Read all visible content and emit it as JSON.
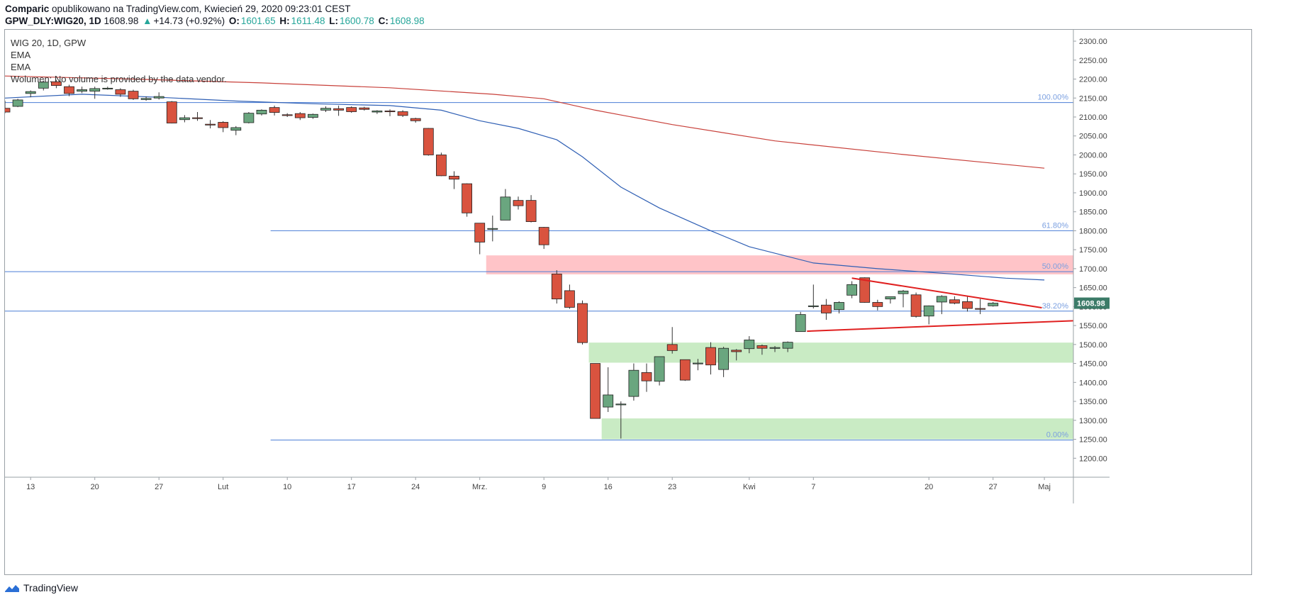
{
  "header": {
    "author": "Comparic",
    "published": " opublikowano na TradingView.com, Kwiecień 29, 2020 09:23:01 CEST",
    "symbol": "GPW_DLY:WIG20, 1D",
    "last": "1608.98",
    "arrow": "▲",
    "change": "+14.73 (+0.92%)",
    "o_label": "O:",
    "o": "1601.65",
    "h_label": "H:",
    "h": "1611.48",
    "l_label": "L:",
    "l": "1600.78",
    "c_label": "C:",
    "c": "1608.98"
  },
  "legend": {
    "title": "WIG 20, 1D, GPW",
    "ema1": "EMA",
    "ema2": "EMA",
    "volume": "Wolumen: No volume is provided by the data vendor."
  },
  "footer": {
    "brand": "TradingView"
  },
  "colors": {
    "up": "#26a69a",
    "body_up": "#6aa67f",
    "body_down": "#d9533f",
    "ema_fast": "#2f5fb4",
    "ema_slow": "#c8403a",
    "fib": "#4a7ed6",
    "zone_red": "#ffc4c8",
    "zone_green": "#c9ebc4",
    "trend": "#e02020"
  },
  "chart_data": {
    "type": "candlestick",
    "ylim": [
      1150,
      2330
    ],
    "y_ticks": [
      1200,
      1250,
      1300,
      1350,
      1400,
      1450,
      1500,
      1550,
      1600,
      1650,
      1700,
      1750,
      1800,
      1850,
      1900,
      1950,
      2000,
      2050,
      2100,
      2150,
      2200,
      2250,
      2300
    ],
    "y_tick_labels": [
      "1200.00",
      "1250.00",
      "1300.00",
      "1350.00",
      "1400.00",
      "1450.00",
      "1500.00",
      "1550.00",
      "1600.00",
      "1650.00",
      "1700.00",
      "1750.00",
      "1800.00",
      "1850.00",
      "1900.00",
      "1950.00",
      "2000.00",
      "2050.00",
      "2100.00",
      "2150.00",
      "2200.00",
      "2250.00",
      "2300.00"
    ],
    "x_tick_labels": [
      {
        "label": "13",
        "i": 2
      },
      {
        "label": "20",
        "i": 7
      },
      {
        "label": "27",
        "i": 12
      },
      {
        "label": "Lut",
        "i": 17
      },
      {
        "label": "10",
        "i": 22
      },
      {
        "label": "17",
        "i": 27
      },
      {
        "label": "24",
        "i": 32
      },
      {
        "label": "Mrz.",
        "i": 37
      },
      {
        "label": "9",
        "i": 42
      },
      {
        "label": "16",
        "i": 47
      },
      {
        "label": "23",
        "i": 52
      },
      {
        "label": "Kwi",
        "i": 58
      },
      {
        "label": "7",
        "i": 63
      },
      {
        "label": "20",
        "i": 72
      },
      {
        "label": "27",
        "i": 77
      },
      {
        "label": "Maj",
        "i": 81
      }
    ],
    "candles": [
      {
        "o": 2123,
        "h": 2143,
        "l": 2110,
        "c": 2113
      },
      {
        "o": 2128,
        "h": 2148,
        "l": 2126,
        "c": 2145
      },
      {
        "o": 2162,
        "h": 2170,
        "l": 2152,
        "c": 2167
      },
      {
        "o": 2176,
        "h": 2196,
        "l": 2170,
        "c": 2192
      },
      {
        "o": 2193,
        "h": 2198,
        "l": 2176,
        "c": 2183
      },
      {
        "o": 2180,
        "h": 2185,
        "l": 2155,
        "c": 2162
      },
      {
        "o": 2168,
        "h": 2180,
        "l": 2163,
        "c": 2172
      },
      {
        "o": 2168,
        "h": 2180,
        "l": 2148,
        "c": 2175
      },
      {
        "o": 2176,
        "h": 2180,
        "l": 2172,
        "c": 2176
      },
      {
        "o": 2172,
        "h": 2176,
        "l": 2153,
        "c": 2160
      },
      {
        "o": 2168,
        "h": 2172,
        "l": 2145,
        "c": 2148
      },
      {
        "o": 2146,
        "h": 2154,
        "l": 2143,
        "c": 2149
      },
      {
        "o": 2150,
        "h": 2165,
        "l": 2146,
        "c": 2154
      },
      {
        "o": 2140,
        "h": 2142,
        "l": 2083,
        "c": 2084
      },
      {
        "o": 2093,
        "h": 2105,
        "l": 2086,
        "c": 2098
      },
      {
        "o": 2098,
        "h": 2113,
        "l": 2090,
        "c": 2096
      },
      {
        "o": 2081,
        "h": 2092,
        "l": 2070,
        "c": 2080
      },
      {
        "o": 2086,
        "h": 2089,
        "l": 2060,
        "c": 2072
      },
      {
        "o": 2065,
        "h": 2076,
        "l": 2052,
        "c": 2072
      },
      {
        "o": 2085,
        "h": 2113,
        "l": 2083,
        "c": 2110
      },
      {
        "o": 2108,
        "h": 2120,
        "l": 2104,
        "c": 2118
      },
      {
        "o": 2125,
        "h": 2130,
        "l": 2104,
        "c": 2112
      },
      {
        "o": 2106,
        "h": 2110,
        "l": 2100,
        "c": 2105
      },
      {
        "o": 2109,
        "h": 2113,
        "l": 2092,
        "c": 2098
      },
      {
        "o": 2099,
        "h": 2109,
        "l": 2095,
        "c": 2107
      },
      {
        "o": 2118,
        "h": 2128,
        "l": 2113,
        "c": 2123
      },
      {
        "o": 2122,
        "h": 2130,
        "l": 2103,
        "c": 2118
      },
      {
        "o": 2125,
        "h": 2128,
        "l": 2111,
        "c": 2114
      },
      {
        "o": 2124,
        "h": 2127,
        "l": 2117,
        "c": 2120
      },
      {
        "o": 2113,
        "h": 2118,
        "l": 2108,
        "c": 2116
      },
      {
        "o": 2116,
        "h": 2120,
        "l": 2102,
        "c": 2114
      },
      {
        "o": 2114,
        "h": 2118,
        "l": 2100,
        "c": 2104
      },
      {
        "o": 2096,
        "h": 2098,
        "l": 2085,
        "c": 2090
      },
      {
        "o": 2070,
        "h": 2071,
        "l": 1998,
        "c": 2000
      },
      {
        "o": 2000,
        "h": 2006,
        "l": 1944,
        "c": 1945
      },
      {
        "o": 1944,
        "h": 1957,
        "l": 1910,
        "c": 1936
      },
      {
        "o": 1924,
        "h": 1925,
        "l": 1837,
        "c": 1847
      },
      {
        "o": 1820,
        "h": 1820,
        "l": 1738,
        "c": 1770
      },
      {
        "o": 1806,
        "h": 1840,
        "l": 1772,
        "c": 1806
      },
      {
        "o": 1828,
        "h": 1910,
        "l": 1828,
        "c": 1889
      },
      {
        "o": 1880,
        "h": 1890,
        "l": 1856,
        "c": 1866
      },
      {
        "o": 1880,
        "h": 1894,
        "l": 1822,
        "c": 1824
      },
      {
        "o": 1809,
        "h": 1810,
        "l": 1752,
        "c": 1763
      },
      {
        "o": 1686,
        "h": 1696,
        "l": 1608,
        "c": 1620
      },
      {
        "o": 1642,
        "h": 1658,
        "l": 1594,
        "c": 1598
      },
      {
        "o": 1608,
        "h": 1616,
        "l": 1500,
        "c": 1505
      },
      {
        "o": 1450,
        "h": 1450,
        "l": 1305,
        "c": 1305
      },
      {
        "o": 1335,
        "h": 1440,
        "l": 1322,
        "c": 1367
      },
      {
        "o": 1343,
        "h": 1350,
        "l": 1252,
        "c": 1343
      },
      {
        "o": 1363,
        "h": 1450,
        "l": 1352,
        "c": 1432
      },
      {
        "o": 1426,
        "h": 1450,
        "l": 1375,
        "c": 1404
      },
      {
        "o": 1403,
        "h": 1468,
        "l": 1392,
        "c": 1468
      },
      {
        "o": 1500,
        "h": 1546,
        "l": 1476,
        "c": 1484
      },
      {
        "o": 1460,
        "h": 1460,
        "l": 1404,
        "c": 1406
      },
      {
        "o": 1451,
        "h": 1462,
        "l": 1432,
        "c": 1451
      },
      {
        "o": 1492,
        "h": 1506,
        "l": 1421,
        "c": 1446
      },
      {
        "o": 1434,
        "h": 1494,
        "l": 1414,
        "c": 1490
      },
      {
        "o": 1485,
        "h": 1488,
        "l": 1458,
        "c": 1481
      },
      {
        "o": 1489,
        "h": 1522,
        "l": 1477,
        "c": 1512
      },
      {
        "o": 1497,
        "h": 1500,
        "l": 1473,
        "c": 1490
      },
      {
        "o": 1490,
        "h": 1496,
        "l": 1480,
        "c": 1492
      },
      {
        "o": 1490,
        "h": 1508,
        "l": 1480,
        "c": 1506
      },
      {
        "o": 1534,
        "h": 1586,
        "l": 1534,
        "c": 1579
      },
      {
        "o": 1600,
        "h": 1658,
        "l": 1595,
        "c": 1602
      },
      {
        "o": 1604,
        "h": 1620,
        "l": 1565,
        "c": 1583
      },
      {
        "o": 1592,
        "h": 1614,
        "l": 1582,
        "c": 1611
      },
      {
        "o": 1630,
        "h": 1667,
        "l": 1622,
        "c": 1658
      },
      {
        "o": 1676,
        "h": 1677,
        "l": 1610,
        "c": 1611
      },
      {
        "o": 1611,
        "h": 1618,
        "l": 1590,
        "c": 1600
      },
      {
        "o": 1620,
        "h": 1626,
        "l": 1608,
        "c": 1626
      },
      {
        "o": 1634,
        "h": 1644,
        "l": 1598,
        "c": 1641
      },
      {
        "o": 1631,
        "h": 1637,
        "l": 1571,
        "c": 1574
      },
      {
        "o": 1575,
        "h": 1603,
        "l": 1553,
        "c": 1602
      },
      {
        "o": 1612,
        "h": 1630,
        "l": 1580,
        "c": 1627
      },
      {
        "o": 1618,
        "h": 1627,
        "l": 1606,
        "c": 1609
      },
      {
        "o": 1613,
        "h": 1626,
        "l": 1587,
        "c": 1595
      },
      {
        "o": 1595,
        "h": 1620,
        "l": 1580,
        "c": 1594
      },
      {
        "o": 1602,
        "h": 1612,
        "l": 1600,
        "c": 1609
      }
    ],
    "ema_fast": [
      [
        0,
        2150
      ],
      [
        6,
        2160
      ],
      [
        12,
        2152
      ],
      [
        18,
        2142
      ],
      [
        24,
        2135
      ],
      [
        30,
        2130
      ],
      [
        34,
        2118
      ],
      [
        37,
        2090
      ],
      [
        40,
        2070
      ],
      [
        43,
        2040
      ],
      [
        45,
        1995
      ],
      [
        48,
        1915
      ],
      [
        51,
        1860
      ],
      [
        55,
        1800
      ],
      [
        58,
        1758
      ],
      [
        63,
        1715
      ],
      [
        68,
        1700
      ],
      [
        73,
        1688
      ],
      [
        78,
        1675
      ],
      [
        81,
        1670
      ]
    ],
    "ema_slow": [
      [
        0,
        2208
      ],
      [
        10,
        2200
      ],
      [
        20,
        2190
      ],
      [
        30,
        2177
      ],
      [
        38,
        2160
      ],
      [
        42,
        2148
      ],
      [
        46,
        2118
      ],
      [
        52,
        2080
      ],
      [
        60,
        2037
      ],
      [
        70,
        2001
      ],
      [
        81,
        1965
      ]
    ],
    "fib_levels": [
      {
        "label": "100.00%",
        "value": 2138
      },
      {
        "label": "61.80%",
        "value": 1800
      },
      {
        "label": "50.00%",
        "value": 1692
      },
      {
        "label": "38.20%",
        "value": 1588
      },
      {
        "label": "0.00%",
        "value": 1248
      }
    ],
    "zones": [
      {
        "color": "red",
        "from": 37.5,
        "to": null,
        "low": 1685,
        "high": 1735
      },
      {
        "color": "green",
        "from": 45.5,
        "to": null,
        "low": 1452,
        "high": 1505
      },
      {
        "color": "green",
        "from": 46.5,
        "to": null,
        "low": 1250,
        "high": 1305
      }
    ],
    "trendlines": [
      {
        "x1": 66,
        "y1": 1675,
        "x2": 80.8,
        "y2": 1597
      },
      {
        "x1": 62.5,
        "y1": 1535,
        "x2": 83.5,
        "y2": 1563
      }
    ],
    "last_price": "1608.98"
  }
}
